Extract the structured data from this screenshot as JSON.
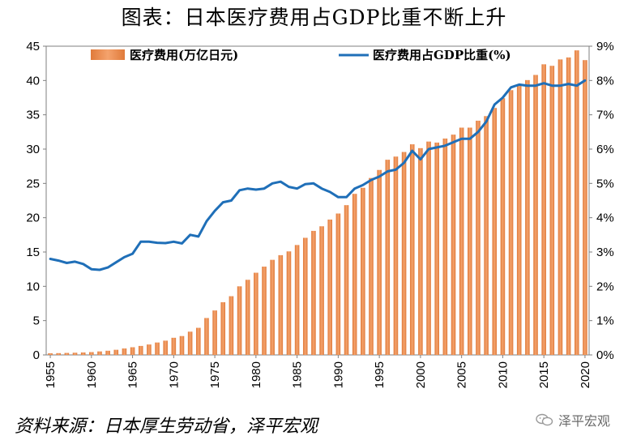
{
  "title": "图表：日本医疗费用占GDP比重不断上升",
  "source": "资料来源：日本厚生劳动省，泽平宏观",
  "watermark": {
    "label": "泽平宏观",
    "icon": "wechat-icon"
  },
  "colors": {
    "bar": "#f4a36d",
    "bar_dark": "#e07a3a",
    "line": "#1f6fb8",
    "axis": "#7f7f7f",
    "text": "#000000"
  },
  "chart_data": {
    "type": "bar",
    "title": "图表：日本医疗费用占GDP比重不断上升",
    "xlabel": "",
    "x_ticks": [
      "1955",
      "1960",
      "1965",
      "1970",
      "1975",
      "1980",
      "1985",
      "1990",
      "1995",
      "2000",
      "2005",
      "2010",
      "2015",
      "2020"
    ],
    "y_left_ticks": [
      "0",
      "5",
      "10",
      "15",
      "20",
      "25",
      "30",
      "35",
      "40",
      "45"
    ],
    "y_right_ticks": [
      "0%",
      "1%",
      "2%",
      "3%",
      "4%",
      "5%",
      "6%",
      "7%",
      "8%",
      "9%"
    ],
    "ylim_left": [
      0,
      45
    ],
    "ylim_right": [
      0,
      9
    ],
    "legend_position": "top",
    "years": [
      1955,
      1956,
      1957,
      1958,
      1959,
      1960,
      1961,
      1962,
      1963,
      1964,
      1965,
      1966,
      1967,
      1968,
      1969,
      1970,
      1971,
      1972,
      1973,
      1974,
      1975,
      1976,
      1977,
      1978,
      1979,
      1980,
      1981,
      1982,
      1983,
      1984,
      1985,
      1986,
      1987,
      1988,
      1989,
      1990,
      1991,
      1992,
      1993,
      1994,
      1995,
      1996,
      1997,
      1998,
      1999,
      2000,
      2001,
      2002,
      2003,
      2004,
      2005,
      2006,
      2007,
      2008,
      2009,
      2010,
      2011,
      2012,
      2013,
      2014,
      2015,
      2016,
      2017,
      2018,
      2019,
      2020
    ],
    "series": [
      {
        "name": "医疗费用(万亿日元)",
        "type": "bar",
        "axis": "left",
        "values": [
          0.24,
          0.26,
          0.29,
          0.32,
          0.36,
          0.41,
          0.51,
          0.61,
          0.75,
          0.94,
          1.12,
          1.31,
          1.52,
          1.81,
          2.08,
          2.5,
          2.75,
          3.39,
          3.95,
          5.38,
          6.48,
          7.68,
          8.56,
          10.0,
          10.95,
          11.98,
          12.87,
          13.86,
          14.54,
          15.09,
          16.02,
          17.07,
          18.08,
          18.75,
          19.73,
          20.61,
          21.83,
          23.48,
          24.36,
          25.79,
          26.96,
          28.45,
          28.91,
          29.58,
          30.7,
          30.14,
          31.1,
          30.95,
          31.54,
          32.11,
          33.13,
          33.13,
          34.14,
          34.81,
          36.0,
          37.42,
          38.59,
          39.21,
          40.06,
          40.81,
          42.36,
          42.14,
          43.07,
          43.36,
          44.39,
          42.97
        ]
      },
      {
        "name": "医疗费用占GDP比重(%)",
        "type": "line",
        "axis": "right",
        "values": [
          2.8,
          2.75,
          2.68,
          2.72,
          2.65,
          2.5,
          2.48,
          2.55,
          2.7,
          2.85,
          2.95,
          3.3,
          3.3,
          3.27,
          3.26,
          3.3,
          3.25,
          3.5,
          3.45,
          3.9,
          4.2,
          4.45,
          4.5,
          4.8,
          4.85,
          4.82,
          4.85,
          5.0,
          5.05,
          4.9,
          4.85,
          4.98,
          5.0,
          4.85,
          4.75,
          4.6,
          4.6,
          4.85,
          4.95,
          5.1,
          5.2,
          5.35,
          5.4,
          5.6,
          5.95,
          5.7,
          6.0,
          6.05,
          6.1,
          6.2,
          6.3,
          6.3,
          6.5,
          6.8,
          7.3,
          7.5,
          7.8,
          7.88,
          7.85,
          7.85,
          7.92,
          7.85,
          7.85,
          7.9,
          7.85,
          8.0
        ]
      }
    ]
  }
}
